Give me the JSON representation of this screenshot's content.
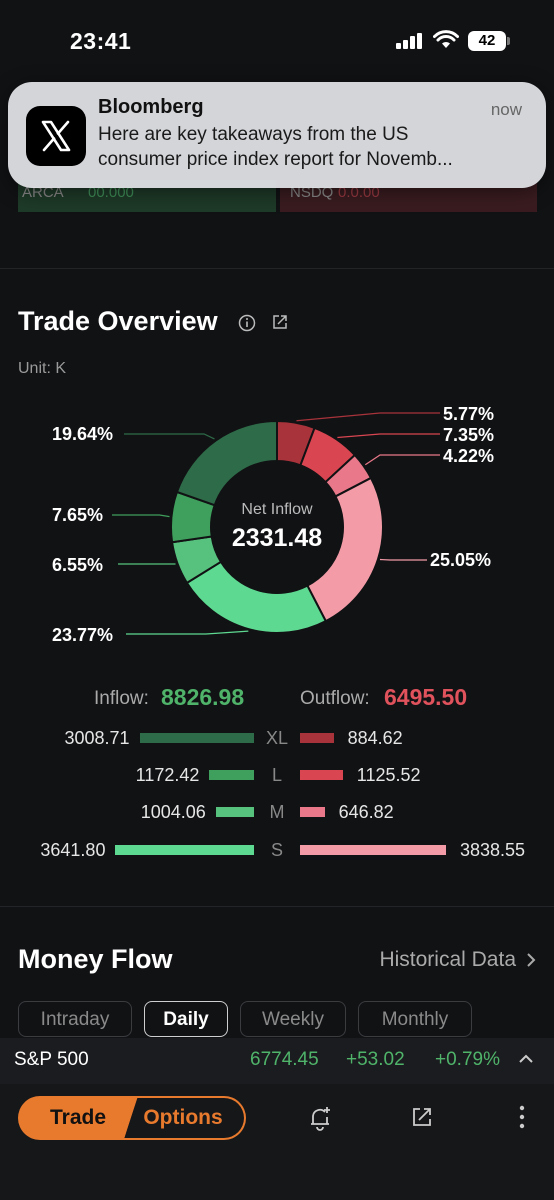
{
  "status_bar": {
    "time": "23:41",
    "battery": "42"
  },
  "ticker_partial": {
    "left_name": "ARCA",
    "left_value": "00.000",
    "right_name": "NSDQ",
    "right_value": "0.0.00"
  },
  "notification": {
    "app": "Bloomberg",
    "time": "now",
    "body_line1": "Here are key takeaways from the US",
    "body_line2": "consumer price index report for Novemb..."
  },
  "trade_overview": {
    "title": "Trade Overview",
    "unit": "Unit: K",
    "center_label": "Net Inflow",
    "center_value": "2331.48",
    "inflow_label": "Inflow:",
    "inflow_value": "8826.98",
    "outflow_label": "Outflow:",
    "outflow_value": "6495.50",
    "rows": [
      {
        "size": "XL",
        "inflow": "3008.71",
        "outflow": "884.62"
      },
      {
        "size": "L",
        "inflow": "1172.42",
        "outflow": "1125.52"
      },
      {
        "size": "M",
        "inflow": "1004.06",
        "outflow": "646.82"
      },
      {
        "size": "S",
        "inflow": "3641.80",
        "outflow": "3838.55"
      }
    ]
  },
  "chart_data": {
    "type": "pie",
    "variant": "donut",
    "start": "top, clockwise",
    "slices": [
      {
        "label": "5.77%",
        "value": 5.77,
        "color": "#a8333b"
      },
      {
        "label": "7.35%",
        "value": 7.35,
        "color": "#d94651"
      },
      {
        "label": "4.22%",
        "value": 4.22,
        "color": "#e8788a"
      },
      {
        "label": "25.05%",
        "value": 25.05,
        "color": "#f39ca8"
      },
      {
        "label": "23.77%",
        "value": 23.77,
        "color": "#5ed991"
      },
      {
        "label": "6.55%",
        "value": 6.55,
        "color": "#56c27e"
      },
      {
        "label": "7.65%",
        "value": 7.65,
        "color": "#3f9f5c"
      },
      {
        "label": "19.64%",
        "value": 19.64,
        "color": "#2e6b48"
      }
    ]
  },
  "money_flow": {
    "title": "Money Flow",
    "historical_link": "Historical Data",
    "tabs": [
      "Intraday",
      "Daily",
      "Weekly",
      "Monthly"
    ],
    "active_tab": "Daily"
  },
  "index_bar": {
    "name": "S&P 500",
    "price": "6774.45",
    "change": "+53.02",
    "change_pct": "+0.79%"
  },
  "bottom_bar": {
    "trade_label": "Trade",
    "options_label": "Options"
  },
  "colors": {
    "green": "#4fb36a",
    "red": "#e0525c",
    "accent": "#e87a2e",
    "background": "#111214"
  },
  "icons": [
    "x-logo-icon",
    "info-icon",
    "share-icon",
    "chevron-right-icon",
    "caret-up-icon",
    "bell-add-icon",
    "more-vertical-icon"
  ]
}
